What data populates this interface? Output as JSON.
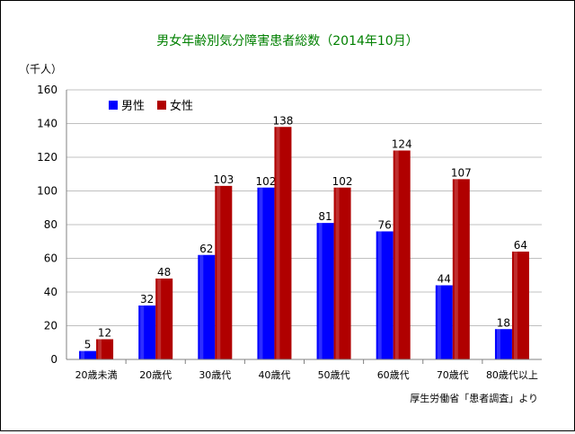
{
  "chart_data": {
    "type": "bar",
    "title": "男女年齢別気分障害患者総数（2014年10月）",
    "unit_label": "（千人）",
    "source": "厚生労働省「患者調査」より",
    "categories": [
      "20歳未満",
      "20歳代",
      "30歳代",
      "40歳代",
      "50歳代",
      "60歳代",
      "70歳代",
      "80歳代以上"
    ],
    "series": [
      {
        "name": "男性",
        "color": "#0000ff",
        "values": [
          5,
          32,
          62,
          102,
          81,
          76,
          44,
          18
        ]
      },
      {
        "name": "女性",
        "color": "#b00000",
        "values": [
          12,
          48,
          103,
          138,
          102,
          124,
          107,
          64
        ]
      }
    ],
    "yticks": [
      0,
      20,
      40,
      60,
      80,
      100,
      120,
      140,
      160
    ],
    "ylim": [
      0,
      160
    ],
    "grid": true,
    "legend": "top-left",
    "colors": {
      "title": "#008000",
      "grid": "#c0c0c0",
      "axis": "#808080"
    }
  }
}
